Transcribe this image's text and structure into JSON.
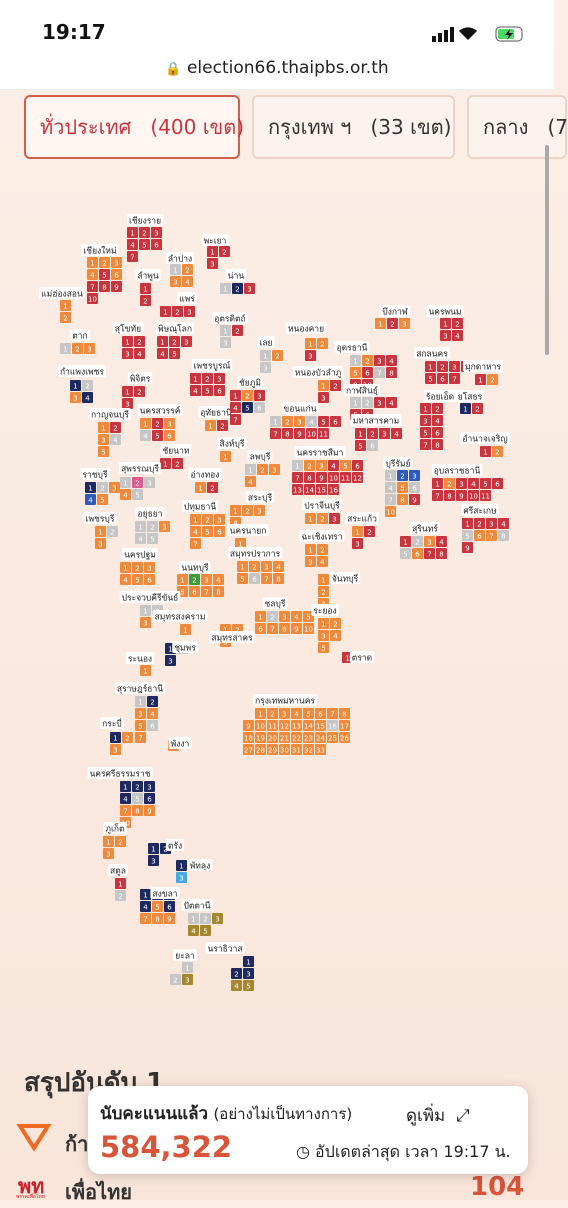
{
  "status_bar": {
    "time": "19:17"
  },
  "browser": {
    "url": "election66.thaipbs.or.th"
  },
  "tabs": [
    {
      "name": "ทั่วประเทศ",
      "count": "(400 เขต)"
    },
    {
      "name": "กรุงเทพ ฯ",
      "count": "(33 เขต)"
    },
    {
      "name": "กลาง",
      "count": "(7"
    }
  ],
  "provinces": [
    {
      "name": "เชียงราย",
      "districts": [
        1,
        2,
        3,
        4,
        5,
        6,
        7
      ],
      "colors": [
        "#c8353e",
        "#c8353e",
        "#c8353e",
        "#c8353e",
        "#c8353e",
        "#c8353e",
        "#c8353e"
      ]
    },
    {
      "name": "พะเยา",
      "districts": [
        1,
        2,
        3
      ],
      "colors": [
        "#c8353e",
        "#c8353e",
        "#c8353e"
      ]
    },
    {
      "name": "เชียงใหม่",
      "districts": [
        1,
        2,
        3,
        4,
        5,
        6,
        7,
        8,
        9,
        10
      ],
      "colors": [
        "#ef8a3c",
        "#ef8a3c",
        "#ef8a3c",
        "#ef8a3c",
        "#c8353e",
        "#ef8a3c",
        "#c8353e",
        "#c8353e",
        "#c8353e",
        "#c8353e"
      ]
    },
    {
      "name": "ลำปาง",
      "districts": [
        1,
        2,
        3,
        4
      ],
      "colors": [
        "#c6c6c6",
        "#ef8a3c",
        "#ef8a3c",
        "#ef8a3c"
      ]
    },
    {
      "name": "แม่ฮ่องสอน",
      "districts": [
        1,
        2
      ],
      "colors": [
        "#ef8a3c",
        "#ef8a3c"
      ]
    },
    {
      "name": "ลำพูน",
      "districts": [
        1,
        2
      ],
      "colors": [
        "#c8353e",
        "#c8353e"
      ]
    },
    {
      "name": "น่าน",
      "districts": [
        1,
        2,
        3
      ],
      "colors": [
        "#c6c6c6",
        "#1e2960",
        "#c8353e"
      ]
    },
    {
      "name": "แพร่",
      "districts": [
        1,
        2,
        3
      ],
      "colors": [
        "#c8353e",
        "#c8353e",
        "#c8353e"
      ]
    },
    {
      "name": "อุตรดิตถ์",
      "districts": [
        1,
        2,
        3
      ],
      "colors": [
        "#c6c6c6",
        "#c8353e",
        "#c6c6c6"
      ]
    },
    {
      "name": "ตาก",
      "districts": [
        1,
        2,
        3
      ],
      "colors": [
        "#c6c6c6",
        "#ef8a3c",
        "#ef8a3c"
      ]
    },
    {
      "name": "สุโขทัย",
      "districts": [
        1,
        2,
        3,
        4
      ],
      "colors": [
        "#c8353e",
        "#c8353e",
        "#c8353e",
        "#c8353e"
      ]
    },
    {
      "name": "พิษณุโลก",
      "districts": [
        1,
        2,
        3,
        4,
        5
      ],
      "colors": [
        "#c8353e",
        "#c8353e",
        "#c8353e",
        "#c8353e",
        "#c8353e"
      ]
    },
    {
      "name": "กำแพงเพชร",
      "districts": [
        1,
        2,
        3,
        4
      ],
      "colors": [
        "#1e2960",
        "#c6c6c6",
        "#ef8a3c",
        "#1e2960"
      ]
    },
    {
      "name": "พิจิตร",
      "districts": [
        1,
        2,
        3
      ],
      "colors": [
        "#c8353e",
        "#c8353e",
        "#c8353e"
      ]
    },
    {
      "name": "เพชรบูรณ์",
      "districts": [
        1,
        2,
        3,
        4,
        5,
        6
      ],
      "colors": [
        "#c8353e",
        "#c8353e",
        "#c8353e",
        "#c8353e",
        "#c8353e",
        "#c8353e"
      ]
    },
    {
      "name": "เลย",
      "districts": [
        1,
        2,
        3
      ],
      "colors": [
        "#c6c6c6",
        "#ef8a3c",
        "#c6c6c6"
      ]
    },
    {
      "name": "หนองคาย",
      "districts": [
        1,
        2,
        3
      ],
      "colors": [
        "#ef8a3c",
        "#ef8a3c",
        "#c8353e"
      ]
    },
    {
      "name": "บึงกาฬ",
      "districts": [
        1,
        2,
        3
      ],
      "colors": [
        "#ef8a3c",
        "#c8353e",
        "#ef8a3c"
      ]
    },
    {
      "name": "นครพนม",
      "districts": [
        1,
        2,
        3,
        4
      ],
      "colors": [
        "#c8353e",
        "#c8353e",
        "#c8353e",
        "#c8353e"
      ]
    },
    {
      "name": "อุดรธานี",
      "districts": [
        1,
        2,
        3,
        4,
        5,
        6,
        7,
        8,
        9,
        10
      ],
      "colors": [
        "#c6c6c6",
        "#ef8a3c",
        "#c8353e",
        "#c8353e",
        "#ef8a3c",
        "#c8353e",
        "#c6c6c6",
        "#c8353e",
        "#c8353e",
        "#c8353e"
      ]
    },
    {
      "name": "สกลนคร",
      "districts": [
        1,
        2,
        3,
        4,
        5,
        6,
        7
      ],
      "colors": [
        "#c8353e",
        "#c8353e",
        "#c8353e",
        "#c8353e",
        "#c8353e",
        "#c8353e",
        "#c8353e"
      ]
    },
    {
      "name": "มุกดาหาร",
      "districts": [
        1,
        2
      ],
      "colors": [
        "#c8353e",
        "#ef8a3c"
      ]
    },
    {
      "name": "หนองบัวลำภู",
      "districts": [
        1,
        2,
        3
      ],
      "colors": [
        "#ef8a3c",
        "#c8353e",
        "#c8353e"
      ]
    },
    {
      "name": "กาฬสินธุ์",
      "districts": [
        1,
        2,
        3,
        4,
        5,
        6
      ],
      "colors": [
        "#c6c6c6",
        "#c6c6c6",
        "#c8353e",
        "#c8353e",
        "#c8353e",
        "#c8353e"
      ]
    },
    {
      "name": "ร้อยเอ็ด",
      "districts": [
        1,
        2,
        3,
        4,
        5,
        6,
        7,
        8
      ],
      "colors": [
        "#c8353e",
        "#c8353e",
        "#c8353e",
        "#c8353e",
        "#c8353e",
        "#c8353e",
        "#c8353e",
        "#c8353e"
      ]
    },
    {
      "name": "ยโสธร",
      "districts": [
        1,
        2
      ],
      "colors": [
        "#1e2960",
        "#c8353e"
      ]
    },
    {
      "name": "นครสวรรค์",
      "districts": [
        1,
        2,
        3,
        4,
        5,
        6
      ],
      "colors": [
        "#ef8a3c",
        "#c8353e",
        "#ef8a3c",
        "#c6c6c6",
        "#c8353e",
        "#ef8a3c"
      ]
    },
    {
      "name": "อุทัยธานี",
      "districts": [
        1,
        2
      ],
      "colors": [
        "#ef8a3c",
        "#c8353e"
      ]
    },
    {
      "name": "ชัยภูมิ",
      "districts": [
        1,
        2,
        3,
        4,
        5,
        6,
        7
      ],
      "colors": [
        "#c8353e",
        "#ef8a3c",
        "#c8353e",
        "#c8353e",
        "#1e2960",
        "#c6c6c6",
        "#c8353e"
      ]
    },
    {
      "name": "ขอนแก่น",
      "districts": [
        1,
        2,
        3,
        4,
        5,
        6,
        7,
        8,
        9,
        10,
        11
      ],
      "colors": [
        "#c6c6c6",
        "#ef8a3c",
        "#ef8a3c",
        "#c6c6c6",
        "#c8353e",
        "#c8353e",
        "#c8353e",
        "#c8353e",
        "#c8353e",
        "#c8353e",
        "#c8353e"
      ]
    },
    {
      "name": "มหาสารคาม",
      "districts": [
        1,
        2,
        3,
        4,
        5,
        6
      ],
      "colors": [
        "#c8353e",
        "#c8353e",
        "#c8353e",
        "#c8353e",
        "#c8353e",
        "#c6c6c6"
      ]
    },
    {
      "name": "อำนาจเจริญ",
      "districts": [
        1,
        2
      ],
      "colors": [
        "#c8353e",
        "#ef8a3c"
      ]
    },
    {
      "name": "กาญจนบุรี",
      "districts": [
        1,
        2,
        3,
        4,
        5
      ],
      "colors": [
        "#ef8a3c",
        "#c8353e",
        "#ef8a3c",
        "#c6c6c6",
        "#ef8a3c"
      ]
    },
    {
      "name": "ชัยนาท",
      "districts": [
        1,
        2
      ],
      "colors": [
        "#c8353e",
        "#c8353e"
      ]
    },
    {
      "name": "สิงห์บุรี",
      "districts": [
        1
      ],
      "colors": [
        "#ef8a3c"
      ]
    },
    {
      "name": "นครราชสีมา",
      "districts": [
        1,
        2,
        3,
        4,
        5,
        6,
        7,
        8,
        9,
        10,
        11,
        12,
        13,
        14,
        15,
        16
      ],
      "colors": [
        "#c6c6c6",
        "#ef8a3c",
        "#ef8a3c",
        "#c8353e",
        "#ef8a3c",
        "#c8353e",
        "#c8353e",
        "#c8353e",
        "#c8353e",
        "#c8353e",
        "#c8353e",
        "#c8353e",
        "#c8353e",
        "#c8353e",
        "#c8353e",
        "#c8353e"
      ]
    },
    {
      "name": "บุรีรัมย์",
      "districts": [
        1,
        2,
        3,
        4,
        5,
        6,
        7,
        8,
        9,
        10
      ],
      "colors": [
        "#c6c6c6",
        "#2c5bbd",
        "#2c5bbd",
        "#c6c6c6",
        "#ef8a3c",
        "#c6c6c6",
        "#c6c6c6",
        "#ef8a3c",
        "#c8353e",
        "#ef8a3c"
      ]
    },
    {
      "name": "อุบลราชธานี",
      "districts": [
        1,
        2,
        3,
        4,
        5,
        6,
        7,
        8,
        9,
        10,
        11
      ],
      "colors": [
        "#c8353e",
        "#ef8a3c",
        "#c8353e",
        "#c8353e",
        "#c8353e",
        "#c8353e",
        "#c8353e",
        "#c8353e",
        "#c8353e",
        "#c8353e",
        "#c8353e"
      ]
    },
    {
      "name": "ลพบุรี",
      "districts": [
        1,
        2,
        3,
        4
      ],
      "colors": [
        "#c6c6c6",
        "#ef8a3c",
        "#ef8a3c",
        "#ef8a3c"
      ]
    },
    {
      "name": "สุพรรณบุรี",
      "districts": [
        1,
        2,
        3,
        4,
        5
      ],
      "colors": [
        "#c6c6c6",
        "#e2588c",
        "#c6c6c6",
        "#ef8a3c",
        "#c6c6c6"
      ]
    },
    {
      "name": "อ่างทอง",
      "districts": [
        1,
        2
      ],
      "colors": [
        "#ef8a3c",
        "#c8353e"
      ]
    },
    {
      "name": "ราชบุรี",
      "districts": [
        1,
        2,
        3,
        4,
        5
      ],
      "colors": [
        "#1e2960",
        "#c6c6c6",
        "#ef8a3c",
        "#2c5bbd",
        "#ef8a3c"
      ]
    },
    {
      "name": "สระบุรี",
      "districts": [
        1,
        2,
        3,
        4
      ],
      "colors": [
        "#ef8a3c",
        "#ef8a3c",
        "#ef8a3c",
        "#ef8a3c"
      ]
    },
    {
      "name": "ปทุมธานี",
      "districts": [
        1,
        2,
        3,
        4,
        5,
        6,
        7
      ],
      "colors": [
        "#ef8a3c",
        "#ef8a3c",
        "#ef8a3c",
        "#ef8a3c",
        "#ef8a3c",
        "#ef8a3c",
        "#ef8a3c"
      ]
    },
    {
      "name": "ปราจีนบุรี",
      "districts": [
        1,
        2,
        3
      ],
      "colors": [
        "#ef8a3c",
        "#ef8a3c",
        "#c8353e"
      ]
    },
    {
      "name": "สระแก้ว",
      "districts": [
        1,
        2,
        3
      ],
      "colors": [
        "#ef8a3c",
        "#c8353e",
        "#c8353e"
      ]
    },
    {
      "name": "ศรีสะเกษ",
      "districts": [
        1,
        2,
        3,
        4,
        5,
        6,
        7,
        8,
        9
      ],
      "colors": [
        "#c8353e",
        "#c8353e",
        "#c8353e",
        "#c8353e",
        "#c6c6c6",
        "#ef8a3c",
        "#ef8a3c",
        "#c6c6c6",
        "#c8353e"
      ]
    },
    {
      "name": "อยุธยา",
      "districts": [
        1,
        2,
        3,
        4,
        5
      ],
      "colors": [
        "#c6c6c6",
        "#c6c6c6",
        "#ef8a3c",
        "#c6c6c6",
        "#c6c6c6"
      ]
    },
    {
      "name": "เพชรบุรี",
      "districts": [
        1,
        2,
        3
      ],
      "colors": [
        "#ef8a3c",
        "#c6c6c6",
        "#ef8a3c"
      ]
    },
    {
      "name": "สุรินทร์",
      "districts": [
        1,
        2,
        3,
        4,
        5,
        6,
        7,
        8
      ],
      "colors": [
        "#c8353e",
        "#c6c6c6",
        "#ef8a3c",
        "#c8353e",
        "#c6c6c6",
        "#ef8a3c",
        "#c8353e",
        "#c8353e"
      ]
    },
    {
      "name": "นครนายก",
      "districts": [
        1
      ],
      "colors": [
        "#ef8a3c"
      ]
    },
    {
      "name": "ฉะเชิงเทรา",
      "districts": [
        1,
        2,
        3,
        4
      ],
      "colors": [
        "#ef8a3c",
        "#ef8a3c",
        "#ef8a3c",
        "#ef8a3c"
      ]
    },
    {
      "name": "สมุทรปราการ",
      "districts": [
        1,
        2,
        3,
        4,
        5,
        6,
        7,
        8
      ],
      "colors": [
        "#ef8a3c",
        "#ef8a3c",
        "#ef8a3c",
        "#ef8a3c",
        "#ef8a3c",
        "#c6c6c6",
        "#ef8a3c",
        "#ef8a3c"
      ]
    },
    {
      "name": "นครปฐม",
      "districts": [
        1,
        2,
        3,
        4,
        5,
        6
      ],
      "colors": [
        "#ef8a3c",
        "#ef8a3c",
        "#ef8a3c",
        "#ef8a3c",
        "#ef8a3c",
        "#ef8a3c"
      ]
    },
    {
      "name": "นนทบุรี",
      "districts": [
        1,
        2,
        3,
        4,
        5,
        6,
        7,
        8
      ],
      "colors": [
        "#ef8a3c",
        "#3c9a3c",
        "#ef8a3c",
        "#ef8a3c",
        "#ef8a3c",
        "#ef8a3c",
        "#ef8a3c",
        "#ef8a3c"
      ]
    },
    {
      "name": "จันทบุรี",
      "districts": [
        1,
        2,
        3
      ],
      "colors": [
        "#ef8a3c",
        "#ef8a3c",
        "#ef8a3c"
      ]
    },
    {
      "name": "ประจวบคีรีขันธ์",
      "districts": [
        1,
        2,
        3
      ],
      "colors": [
        "#c6c6c6",
        "#c6c6c6",
        "#ef8a3c"
      ]
    },
    {
      "name": "ชลบุรี",
      "districts": [
        1,
        2,
        3,
        4,
        5,
        6,
        7,
        8,
        9,
        10
      ],
      "colors": [
        "#ef8a3c",
        "#c6c6c6",
        "#ef8a3c",
        "#ef8a3c",
        "#ef8a3c",
        "#ef8a3c",
        "#ef8a3c",
        "#ef8a3c",
        "#ef8a3c",
        "#ef8a3c"
      ]
    },
    {
      "name": "ระยอง",
      "districts": [
        1,
        2,
        3,
        4,
        5
      ],
      "colors": [
        "#ef8a3c",
        "#ef8a3c",
        "#ef8a3c",
        "#ef8a3c",
        "#ef8a3c"
      ]
    },
    {
      "name": "สมุทรสงคราม",
      "districts": [
        1
      ],
      "colors": [
        "#ef8a3c"
      ]
    },
    {
      "name": "สมุทรสาคร",
      "districts": [
        1,
        2,
        3
      ],
      "colors": [
        "#ef8a3c",
        "#ef8a3c",
        "#ef8a3c"
      ]
    },
    {
      "name": "ชุมพร",
      "districts": [
        1,
        2,
        3
      ],
      "colors": [
        "#1e2960",
        "#c6c6c6",
        "#1e2960"
      ]
    },
    {
      "name": "ตราด",
      "districts": [
        1
      ],
      "colors": [
        "#c8353e"
      ]
    },
    {
      "name": "ระนอง",
      "districts": [
        1
      ],
      "colors": [
        "#ef8a3c"
      ]
    },
    {
      "name": "สุราษฎร์ธานี",
      "districts": [
        1,
        2,
        3,
        4,
        5,
        6,
        7
      ],
      "colors": [
        "#c6c6c6",
        "#1e2960",
        "#ef8a3c",
        "#ef8a3c",
        "#ef8a3c",
        "#c6c6c6",
        "#ef8a3c"
      ]
    },
    {
      "name": "กรุงเทพมหานคร",
      "districts": [
        1,
        2,
        3,
        4,
        5,
        6,
        7,
        8,
        9,
        10,
        11,
        12,
        13,
        14,
        15,
        16,
        17,
        18,
        19,
        20,
        21,
        22,
        23,
        24,
        25,
        26,
        27,
        28,
        29,
        30,
        31,
        32,
        33
      ],
      "colors": [
        "#ef8a3c",
        "#ef8a3c",
        "#ef8a3c",
        "#ef8a3c",
        "#ef8a3c",
        "#ef8a3c",
        "#ef8a3c",
        "#ef8a3c",
        "#ef8a3c",
        "#ef8a3c",
        "#ef8a3c",
        "#ef8a3c",
        "#ef8a3c",
        "#ef8a3c",
        "#ef8a3c",
        "#c6c6c6",
        "#ef8a3c",
        "#ef8a3c",
        "#ef8a3c",
        "#ef8a3c",
        "#ef8a3c",
        "#ef8a3c",
        "#ef8a3c",
        "#ef8a3c",
        "#ef8a3c",
        "#ef8a3c",
        "#ef8a3c",
        "#ef8a3c",
        "#ef8a3c",
        "#ef8a3c",
        "#ef8a3c",
        "#ef8a3c",
        "#ef8a3c"
      ]
    },
    {
      "name": "กระบี่",
      "districts": [
        1,
        2,
        3
      ],
      "colors": [
        "#1e2960",
        "#ef8a3c",
        "#ef8a3c"
      ]
    },
    {
      "name": "พังงา",
      "districts": [
        1
      ],
      "colors": [
        "#ef8a3c"
      ]
    },
    {
      "name": "นครศรีธรรมราช",
      "districts": [
        1,
        2,
        3,
        4,
        5,
        6,
        7,
        8,
        9,
        10
      ],
      "colors": [
        "#1e2960",
        "#1e2960",
        "#1e2960",
        "#1e2960",
        "#c6c6c6",
        "#1e2960",
        "#ef8a3c",
        "#ef8a3c",
        "#ef8a3c",
        "#ef8a3c"
      ]
    },
    {
      "name": "ภูเก็ต",
      "districts": [
        1,
        2,
        3
      ],
      "colors": [
        "#ef8a3c",
        "#ef8a3c",
        "#ef8a3c"
      ]
    },
    {
      "name": "ตรัง",
      "districts": [
        1,
        2,
        3
      ],
      "colors": [
        "#1e2960",
        "#1e2960",
        "#1e2960"
      ]
    },
    {
      "name": "พัทลุง",
      "districts": [
        1,
        2,
        3
      ],
      "colors": [
        "#1e2960",
        "#ef8a3c",
        "#48a9e2"
      ]
    },
    {
      "name": "สตูล",
      "districts": [
        1,
        2
      ],
      "colors": [
        "#c8353e",
        "#c6c6c6"
      ]
    },
    {
      "name": "สงขลา",
      "districts": [
        1,
        2,
        3,
        4,
        5,
        6,
        7,
        8,
        9
      ],
      "colors": [
        "#1e2960",
        "#1e2960",
        "#1e2960",
        "#1e2960",
        "#ef8a3c",
        "#1e2960",
        "#ef8a3c",
        "#ef8a3c",
        "#ef8a3c"
      ]
    },
    {
      "name": "ปัตตานี",
      "districts": [
        1,
        2,
        3,
        4,
        5
      ],
      "colors": [
        "#c6c6c6",
        "#c6c6c6",
        "#a5872f",
        "#a5872f",
        "#a5872f"
      ]
    },
    {
      "name": "นราธิวาส",
      "districts": [
        1,
        2,
        3,
        4,
        5
      ],
      "colors": [
        "#1e2960",
        "#1e2960",
        "#1e2960",
        "#a5872f",
        "#a5872f"
      ]
    },
    {
      "name": "ยะลา",
      "districts": [
        1,
        2,
        3
      ],
      "colors": [
        "#c6c6c6",
        "#c6c6c6",
        "#a5872f"
      ]
    }
  ],
  "summary": {
    "title": "สรุปอันดับ 1",
    "rows": [
      {
        "party": "ก้าวไกล"
      },
      {
        "party": "เพื่อไทย",
        "logo": "พท",
        "logo_caption": "พรรคเพื่อไทย",
        "seats": 104
      }
    ]
  },
  "counter": {
    "label": "นับคะแนนแล้ว",
    "note": "(อย่างไม่เป็นทางการ)",
    "more": "ดูเพิ่ม",
    "votes": "584,322",
    "updated": "อัปเดตล่าสุด เวลา 19:17 น."
  }
}
